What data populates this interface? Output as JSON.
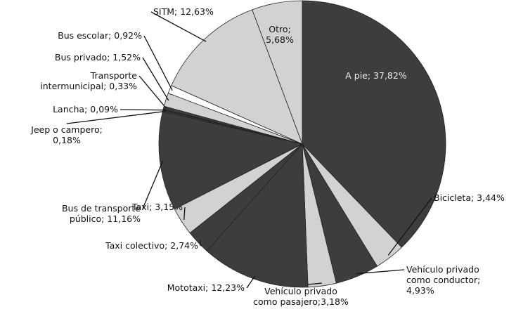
{
  "chart_data": {
    "type": "pie",
    "values": [
      37.82,
      3.44,
      4.93,
      3.18,
      12.23,
      2.74,
      3.15,
      11.16,
      0.18,
      0.09,
      0.33,
      1.52,
      0.92,
      12.63,
      5.68
    ],
    "value_labels": [
      "A pie; 37,82%",
      "Bicicleta; 3,44%",
      "Vehículo privado\ncomo conductor;\n4,93%",
      "Vehículo privado\ncomo pasajero;3,18%",
      "Mototaxi; 12,23%",
      "Taxi colectivo; 2,74%",
      "Taxi; 3,15%",
      "Bus de transporte\npúblico; 11,16%",
      "Jeep o campero;\n0,18%",
      "Lancha; 0,09%",
      "Transporte\nintermunicipal; 0,33%",
      "Bus privado; 1,52%",
      "Bus escolar; 0,92%",
      "SITM; 12,63%",
      "Otro;\n5,68%"
    ],
    "colors": [
      "#3d3d3d",
      "#d2d2d2",
      "#3d3d3d",
      "#d2d2d2",
      "#3d3d3d",
      "#3d3d3d",
      "#d2d2d2",
      "#3d3d3d",
      "#3d3d3d",
      "#3d3d3d",
      "#3d3d3d",
      "#d2d2d2",
      "#ffffff",
      "#d2d2d2",
      "#d2d2d2"
    ]
  }
}
